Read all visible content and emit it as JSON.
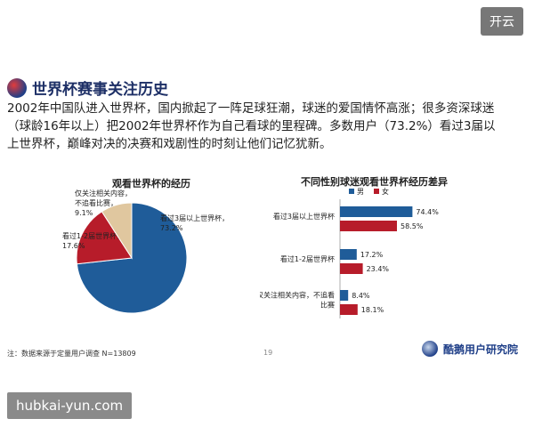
{
  "toggle_label": "开云",
  "header": {
    "title": "世界杯赛事关注历史",
    "intro": "2002年中国队进入世界杯，国内掀起了一阵足球狂潮，球迷的爱国情怀高涨；很多资深球迷（球龄16年以上）把2002年世界杯作为自己看球的里程碑。多数用户（73.2%）看过3届以上世界杯，巅峰对决的决赛和戏剧性的时刻让他们记忆犹新。"
  },
  "chart_data": [
    {
      "type": "pie",
      "title": "观看世界杯的经历",
      "slices": [
        {
          "label": "看过3届以上世界杯，73.2%",
          "value": 73.2,
          "color": "#1f5c99"
        },
        {
          "label": "看过1-2届世界杯，17.6%",
          "value": 17.6,
          "color": "#b71c2a"
        },
        {
          "label": "仅关注相关内容，不追看比赛，9.1%",
          "value": 9.1,
          "color": "#e0c79f"
        }
      ]
    },
    {
      "type": "bar",
      "orientation": "horizontal",
      "title": "不同性别球迷观看世界杯经历差异",
      "categories": [
        "看过3届以上世界杯",
        "看过1-2届世界杯",
        "仅关注相关内容，不追看比赛"
      ],
      "series": [
        {
          "name": "男",
          "values": [
            74.4,
            17.2,
            8.4
          ],
          "color": "#1f5c99"
        },
        {
          "name": "女",
          "values": [
            58.5,
            23.4,
            18.1
          ],
          "color": "#b71c2a"
        }
      ],
      "value_labels": [
        [
          "74.4%",
          "58.5%"
        ],
        [
          "17.2%",
          "23.4%"
        ],
        [
          "8.4%",
          "18.1%"
        ]
      ],
      "legend_position": "top-left",
      "xlim": [
        0,
        100
      ]
    }
  ],
  "footer": {
    "source": "注：数据来源于定量用户调查 N=13809",
    "page_number": "19",
    "brand": "酷鹅用户研究院"
  },
  "watermark": "hubkai-yun.com"
}
